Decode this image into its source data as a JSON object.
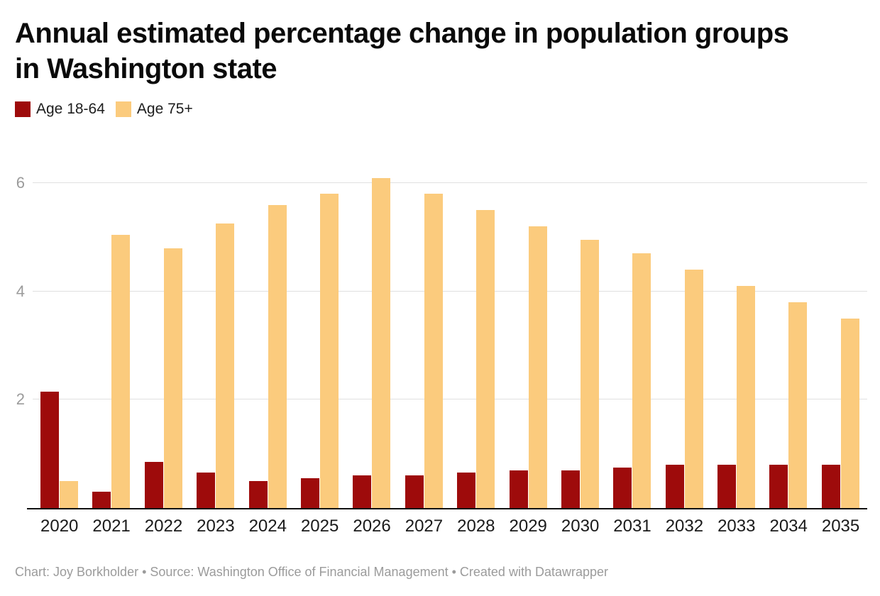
{
  "header": {
    "title": "Annual estimated percentage change in population groups in Washington state",
    "title_lines": [
      "Annual estimated percentage change in population groups",
      "in Washington state"
    ]
  },
  "legend": {
    "items": [
      {
        "label": "Age 18-64",
        "color": "#9e0b0b"
      },
      {
        "label": "Age 75+",
        "color": "#fbcb7d"
      }
    ]
  },
  "chart_data": {
    "type": "bar",
    "title": "Annual estimated percentage change in population groups in Washington state",
    "xlabel": "",
    "ylabel": "",
    "categories": [
      "2020",
      "2021",
      "2022",
      "2023",
      "2024",
      "2025",
      "2026",
      "2027",
      "2028",
      "2029",
      "2030",
      "2031",
      "2032",
      "2033",
      "2034",
      "2035"
    ],
    "series": [
      {
        "name": "Age 18-64",
        "color": "#9e0b0b",
        "values": [
          2.15,
          0.3,
          0.85,
          0.65,
          0.5,
          0.55,
          0.6,
          0.6,
          0.65,
          0.7,
          0.7,
          0.75,
          0.8,
          0.8,
          0.8,
          0.8
        ]
      },
      {
        "name": "Age 75+",
        "color": "#fbcb7d",
        "values": [
          0.5,
          5.05,
          4.8,
          5.25,
          5.6,
          5.8,
          6.1,
          5.8,
          5.5,
          5.2,
          4.95,
          4.7,
          4.4,
          4.1,
          3.8,
          3.5
        ]
      }
    ],
    "ylim": [
      0,
      6.5
    ],
    "yticks": [
      2,
      4,
      6
    ],
    "grid": true,
    "legend_position": "top-left"
  },
  "footer": {
    "text": "Chart: Joy Borkholder • Source: Washington Office of Financial Management • Created with Datawrapper"
  },
  "colors": {
    "series_age_18_64": "#9e0b0b",
    "series_age_75_plus": "#fbcb7d",
    "gridline": "#e0e0e0",
    "axis_line": "#111111",
    "y_tick_label": "#9b9b9b",
    "x_tick_label": "#1a1a1a",
    "footer_text": "#9b9b9b"
  }
}
